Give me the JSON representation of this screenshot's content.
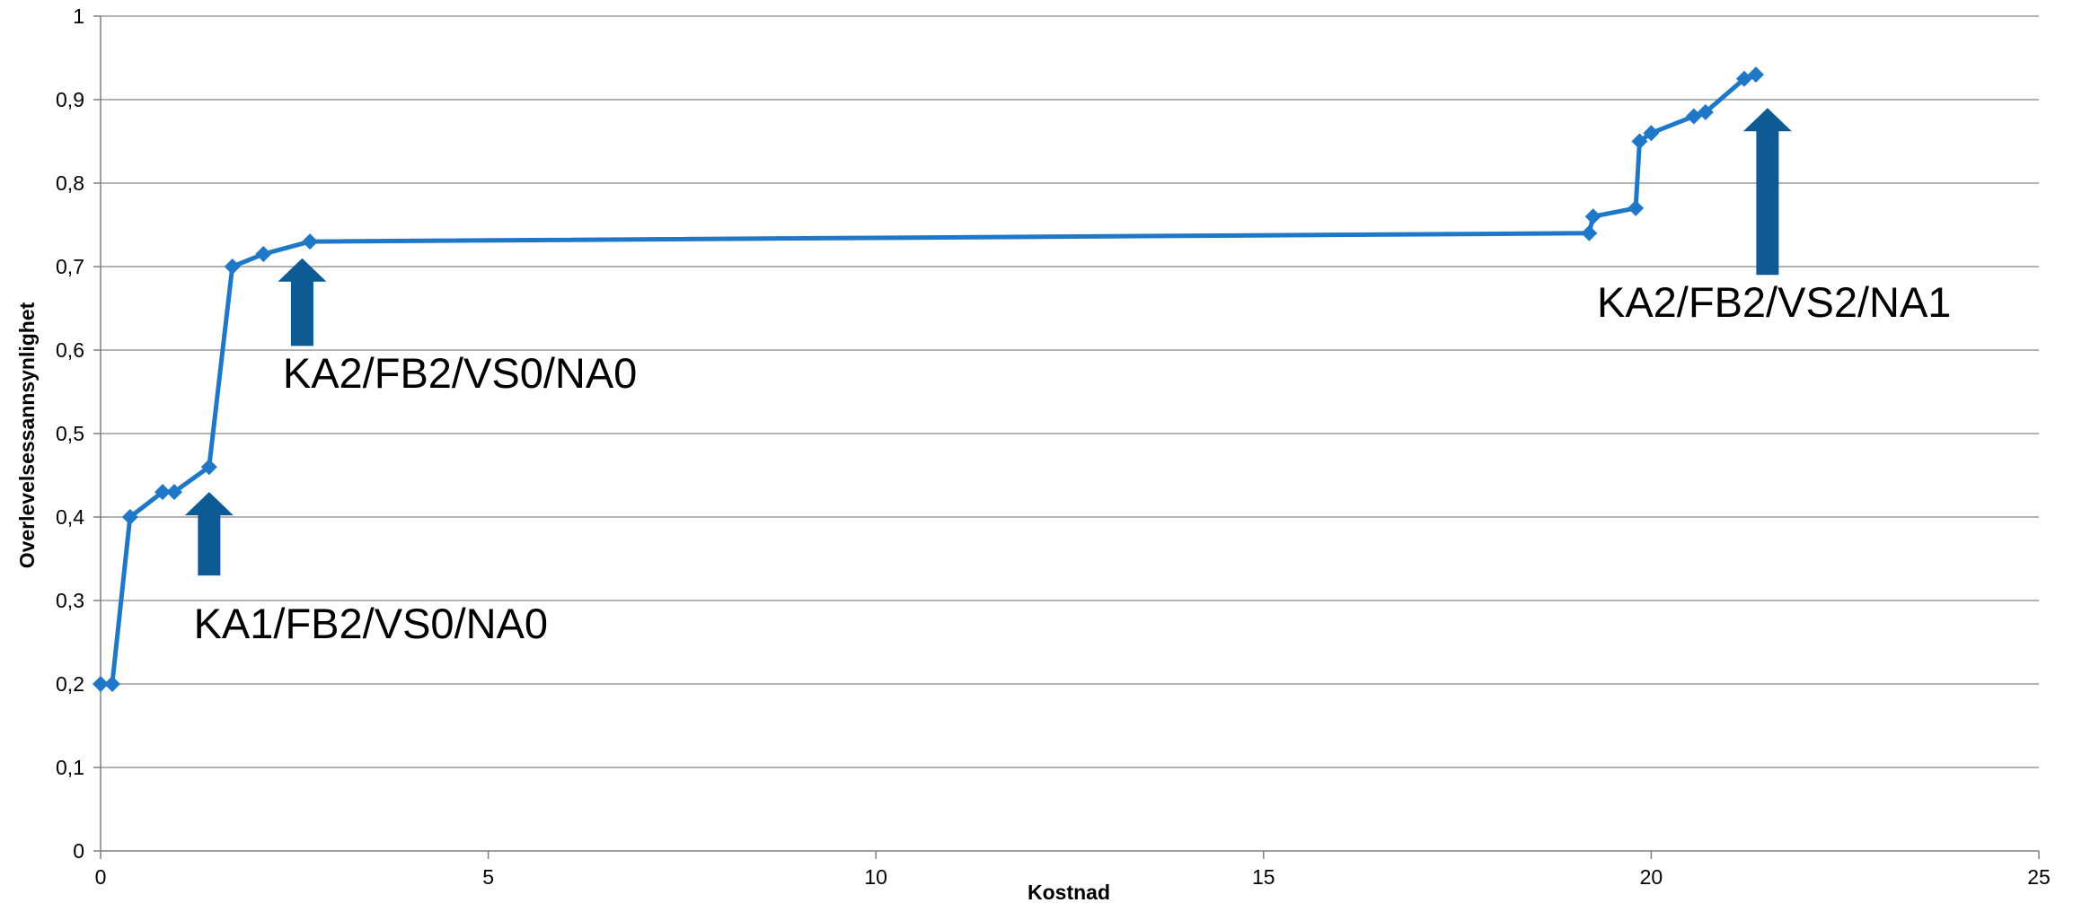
{
  "chart_data": {
    "type": "line",
    "title": "",
    "xlabel": "Kostnad",
    "ylabel": "Overlevelsessannsynlighet",
    "xlim": [
      0,
      25
    ],
    "ylim": [
      0,
      1
    ],
    "x_ticks": [
      {
        "value": 0,
        "label": "0"
      },
      {
        "value": 5,
        "label": "5"
      },
      {
        "value": 10,
        "label": "10"
      },
      {
        "value": 15,
        "label": "15"
      },
      {
        "value": 20,
        "label": "20"
      },
      {
        "value": 25,
        "label": "25"
      }
    ],
    "y_ticks": [
      {
        "value": 0,
        "label": "0"
      },
      {
        "value": 0.1,
        "label": "0,1"
      },
      {
        "value": 0.2,
        "label": "0,2"
      },
      {
        "value": 0.3,
        "label": "0,3"
      },
      {
        "value": 0.4,
        "label": "0,4"
      },
      {
        "value": 0.5,
        "label": "0,5"
      },
      {
        "value": 0.6,
        "label": "0,6"
      },
      {
        "value": 0.7,
        "label": "0,7"
      },
      {
        "value": 0.8,
        "label": "0,8"
      },
      {
        "value": 0.9,
        "label": "0,9"
      },
      {
        "value": 1,
        "label": "1"
      }
    ],
    "grid": "horizontal",
    "legend": "none",
    "series": [
      {
        "color": "#1f77c8",
        "marker": "diamond",
        "points": [
          {
            "x": 0.0,
            "y": 0.2
          },
          {
            "x": 0.15,
            "y": 0.2
          },
          {
            "x": 0.38,
            "y": 0.4
          },
          {
            "x": 0.8,
            "y": 0.43
          },
          {
            "x": 0.95,
            "y": 0.43
          },
          {
            "x": 1.4,
            "y": 0.46
          },
          {
            "x": 1.7,
            "y": 0.7
          },
          {
            "x": 2.1,
            "y": 0.715
          },
          {
            "x": 2.7,
            "y": 0.73
          },
          {
            "x": 19.2,
            "y": 0.74
          },
          {
            "x": 19.25,
            "y": 0.76
          },
          {
            "x": 19.8,
            "y": 0.77
          },
          {
            "x": 19.85,
            "y": 0.85
          },
          {
            "x": 20.0,
            "y": 0.86
          },
          {
            "x": 20.55,
            "y": 0.88
          },
          {
            "x": 20.7,
            "y": 0.885
          },
          {
            "x": 21.2,
            "y": 0.925
          },
          {
            "x": 21.35,
            "y": 0.93
          }
        ]
      }
    ],
    "annotations": [
      {
        "text": "KA1/FB2/VS0/NA0",
        "arrow_x": 1.4,
        "arrow_tip_y": 0.43,
        "arrow_tail_y": 0.33,
        "text_x": 1.2,
        "text_y": 0.255
      },
      {
        "text": "KA2/FB2/VS0/NA0",
        "arrow_x": 2.6,
        "arrow_tip_y": 0.71,
        "arrow_tail_y": 0.605,
        "text_x": 2.35,
        "text_y": 0.555
      },
      {
        "text": "KA2/FB2/VS2/NA1",
        "arrow_x": 21.5,
        "arrow_tip_y": 0.89,
        "arrow_tail_y": 0.69,
        "text_x": 19.3,
        "text_y": 0.64
      }
    ],
    "colors": {
      "line": "#1f77c8",
      "arrow": "#0d5a94",
      "grid": "#9a9a9a"
    }
  }
}
